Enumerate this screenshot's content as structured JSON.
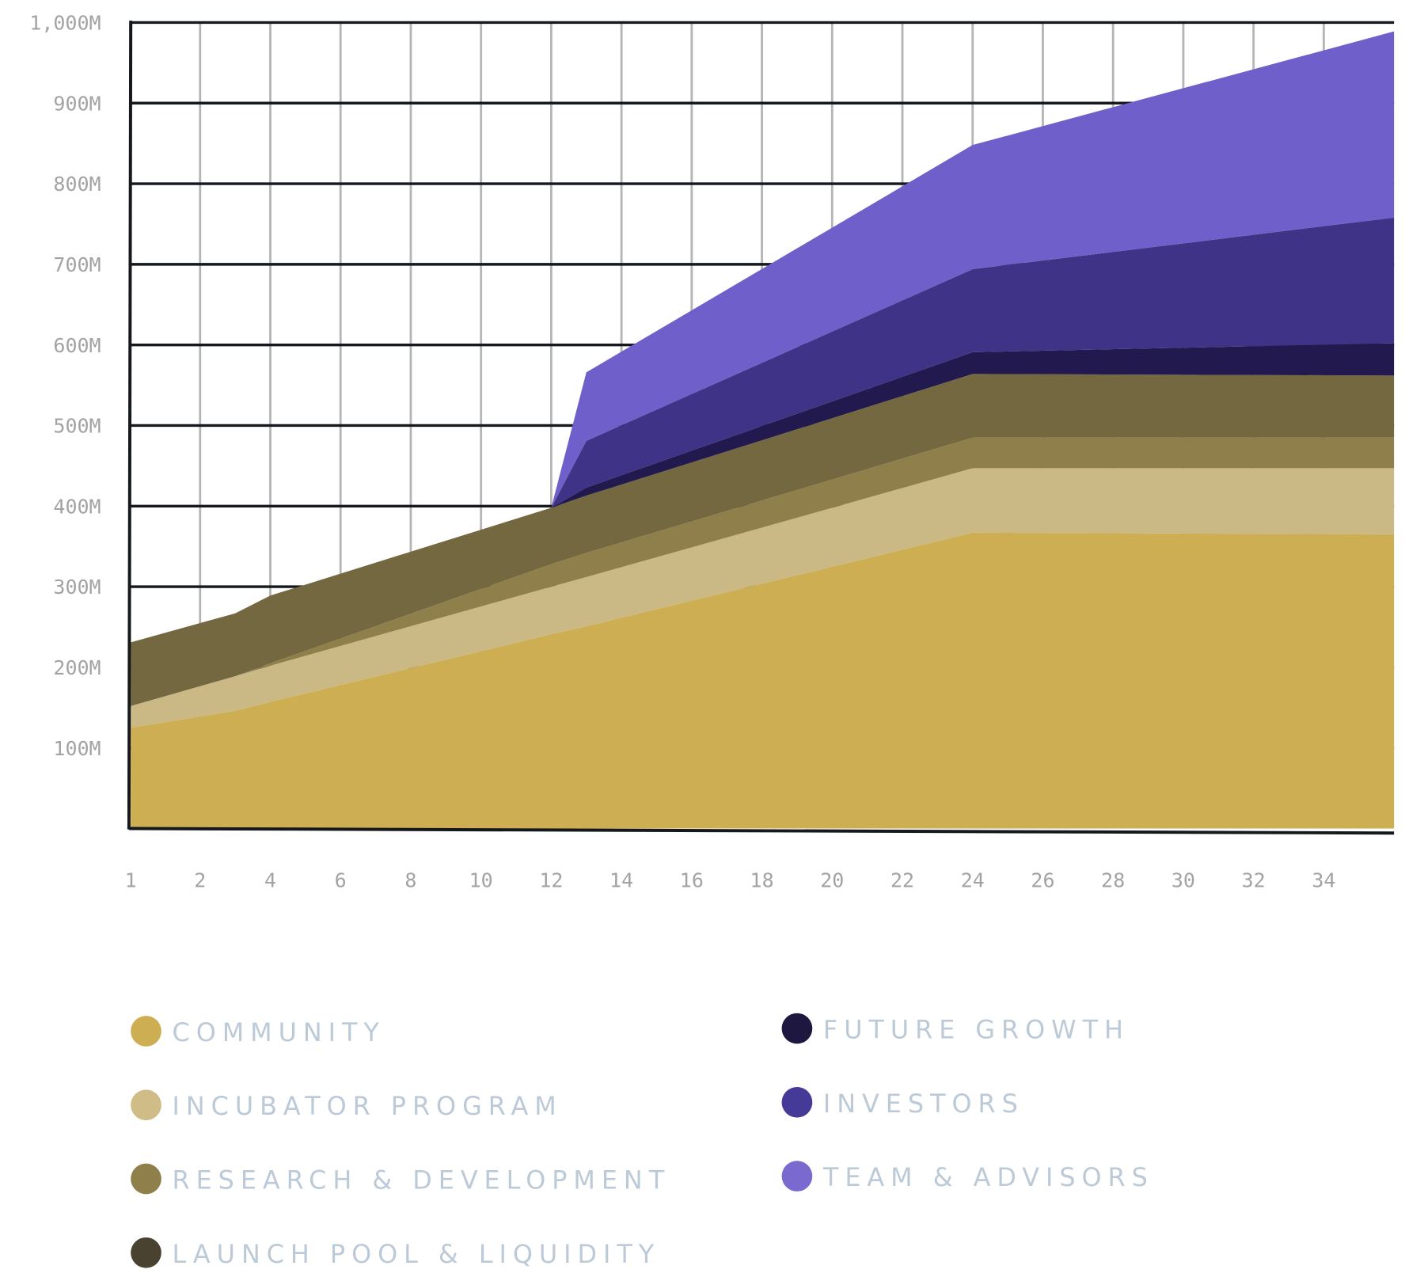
{
  "chart_data": {
    "type": "area",
    "stacked": true,
    "title": "",
    "xlabel": "",
    "ylabel": "",
    "x": [
      1,
      3,
      4,
      12,
      13,
      24,
      36
    ],
    "xlim": [
      1,
      36
    ],
    "ylim": [
      0,
      1000
    ],
    "x_ticks": [
      "1",
      "2",
      "4",
      "6",
      "8",
      "10",
      "12",
      "14",
      "16",
      "18",
      "20",
      "22",
      "24",
      "26",
      "28",
      "30",
      "32",
      "34"
    ],
    "y_ticks": [
      "100M",
      "200M",
      "300M",
      "400M",
      "500M",
      "600M",
      "700M",
      "800M",
      "900M",
      "1,000M"
    ],
    "grid": true,
    "legend_placement": "bottom",
    "series": [
      {
        "name": "COMMUNITY",
        "color": "#CDAE52",
        "area_color": "#CDAE52",
        "values": [
          125,
          146,
          157,
          241,
          251,
          367,
          365
        ]
      },
      {
        "name": "INCUBATOR PROGRAM",
        "color": "#CFBC87",
        "area_color": "#CBB985",
        "values": [
          27,
          43,
          45,
          59,
          61,
          80,
          82
        ]
      },
      {
        "name": "RESEARCH & DEVELOPMENT",
        "color": "#8F7F4A",
        "area_color": "#8F7F4A",
        "values": [
          0,
          0,
          3,
          28,
          30,
          38,
          38
        ]
      },
      {
        "name": "LAUNCH POOL & LIQUIDITY",
        "color": "#4A4230",
        "area_color": "#746840",
        "values": [
          79,
          78,
          84,
          70,
          71,
          79,
          77
        ]
      },
      {
        "name": "FUTURE GROWTH",
        "color": "#1E1840",
        "area_color": "#221A4E",
        "values": [
          0,
          0,
          0,
          0,
          10,
          27,
          40
        ]
      },
      {
        "name": "INVESTORS",
        "color": "#463A98",
        "area_color": "#3E3386",
        "values": [
          0,
          0,
          0,
          0,
          58,
          103,
          156
        ]
      },
      {
        "name": "TEAM & ADVISORS",
        "color": "#7A6AD0",
        "area_color": "#6E5FCB",
        "values": [
          0,
          0,
          0,
          0,
          85,
          154,
          231
        ]
      }
    ]
  }
}
